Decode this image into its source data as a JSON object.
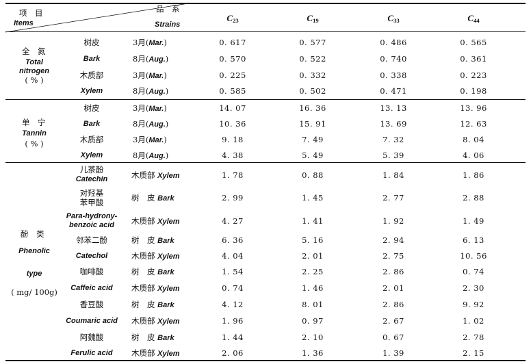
{
  "header": {
    "item_cn": "项　目",
    "item_en": "Items",
    "strain_cn": "品　系",
    "strain_en": "Strains",
    "columns": [
      {
        "letter": "C",
        "sub": "23"
      },
      {
        "letter": "C",
        "sub": "19"
      },
      {
        "letter": "C",
        "sub": "33"
      },
      {
        "letter": "C",
        "sub": "44"
      }
    ]
  },
  "sections": {
    "nitrogen": {
      "label_cn": "全　氮",
      "label_en1": "Total",
      "label_en2": "nitrogen",
      "unit": "( % )",
      "rows": [
        {
          "part": "树皮",
          "month": "3月(",
          "month_en": "Mar.",
          "close": ")",
          "values": [
            "0. 617",
            "0. 577",
            "0. 486",
            "0. 565"
          ]
        },
        {
          "part": "Bark",
          "month": "8月(",
          "month_en": "Aug.",
          "close": ")",
          "values": [
            "0. 570",
            "0. 522",
            "0. 740",
            "0. 361"
          ]
        },
        {
          "part": "木质部",
          "month": "3月(",
          "month_en": "Mar.",
          "close": ")",
          "values": [
            "0. 225",
            "0. 332",
            "0. 338",
            "0. 223"
          ]
        },
        {
          "part": "Xylem",
          "month": "8月(",
          "month_en": "Aug.",
          "close": ")",
          "values": [
            "0. 585",
            "0. 502",
            "0. 471",
            "0. 198"
          ]
        }
      ]
    },
    "tannin": {
      "label_cn": "单　宁",
      "label_en": "Tannin",
      "unit": "( % )",
      "rows": [
        {
          "part": "树皮",
          "month": "3月(",
          "month_en": "Mar.",
          "close": ")",
          "values": [
            "14. 07",
            "16. 36",
            "13. 13",
            "13. 96"
          ]
        },
        {
          "part": "Bark",
          "month": "8月(",
          "month_en": "Aug.",
          "close": ")",
          "values": [
            "10. 36",
            "15. 91",
            "13. 69",
            "12. 63"
          ]
        },
        {
          "part": "木质部",
          "month": "3月(",
          "month_en": "Mar.",
          "close": ")",
          "values": [
            "9. 18",
            "7. 49",
            "7. 32",
            "8. 04"
          ]
        },
        {
          "part": "Xylem",
          "month": "8月(",
          "month_en": "Aug.",
          "close": ")",
          "values": [
            "4. 38",
            "5. 49",
            "5. 39",
            "4. 06"
          ]
        }
      ]
    },
    "phenolic": {
      "label_cn": "酚　类",
      "label_en1": "Phenolic",
      "label_en2": "type",
      "unit": "( mg/ 100g)",
      "rows": [
        {
          "name_cn": "儿茶酚",
          "name_en": "Catechin",
          "tissue_cn": "木质部",
          "tissue_en": "Xylem",
          "values": [
            "1. 78",
            "0. 88",
            "1. 84",
            "1. 86"
          ]
        },
        {
          "name_cn": "对羟基",
          "name_en": "苯甲酸",
          "tissue_cn": "树　皮",
          "tissue_en": "Bark",
          "values": [
            "2. 99",
            "1. 45",
            "2. 77",
            "2. 88"
          ]
        },
        {
          "name_cn": "Para-hydrony-",
          "name_en": "benzoic acid",
          "tissue_cn": "木质部",
          "tissue_en": "Xylem",
          "values": [
            "4. 27",
            "1. 41",
            "1. 92",
            "1. 49"
          ]
        },
        {
          "name_cn": "邻苯二酚",
          "name_en": "",
          "tissue_cn": "树　皮",
          "tissue_en": "Bark",
          "values": [
            "6. 36",
            "5. 16",
            "2. 94",
            "6. 13"
          ]
        },
        {
          "name_cn": "Catechol",
          "name_en": "",
          "tissue_cn": "木质部",
          "tissue_en": "Xylem",
          "values": [
            "4. 04",
            "2. 01",
            "2. 75",
            "10. 56"
          ]
        },
        {
          "name_cn": "咖啡酸",
          "name_en": "",
          "tissue_cn": "树　皮",
          "tissue_en": "Bark",
          "values": [
            "1. 54",
            "2. 25",
            "2. 86",
            "0. 74"
          ]
        },
        {
          "name_cn": "Caffeic acid",
          "name_en": "",
          "tissue_cn": "木质部",
          "tissue_en": "Xylem",
          "values": [
            "0. 74",
            "1. 46",
            "2. 01",
            "2. 30"
          ]
        },
        {
          "name_cn": "香豆酸",
          "name_en": "",
          "tissue_cn": "树　皮",
          "tissue_en": "Bark",
          "values": [
            "4. 12",
            "8. 01",
            "2. 86",
            "9. 92"
          ]
        },
        {
          "name_cn": "Coumaric acid",
          "name_en": "",
          "tissue_cn": "木质部",
          "tissue_en": "Xylem",
          "values": [
            "1. 96",
            "0. 97",
            "2. 67",
            "1. 02"
          ]
        },
        {
          "name_cn": "阿魏酸",
          "name_en": "",
          "tissue_cn": "树　皮",
          "tissue_en": "Bark",
          "values": [
            "1. 44",
            "2. 10",
            "0. 67",
            "2. 78"
          ]
        },
        {
          "name_cn": "Ferulic acid",
          "name_en": "",
          "tissue_cn": "木质部",
          "tissue_en": "Xylem",
          "values": [
            "2. 06",
            "1. 36",
            "1. 39",
            "2. 15"
          ]
        }
      ]
    }
  }
}
